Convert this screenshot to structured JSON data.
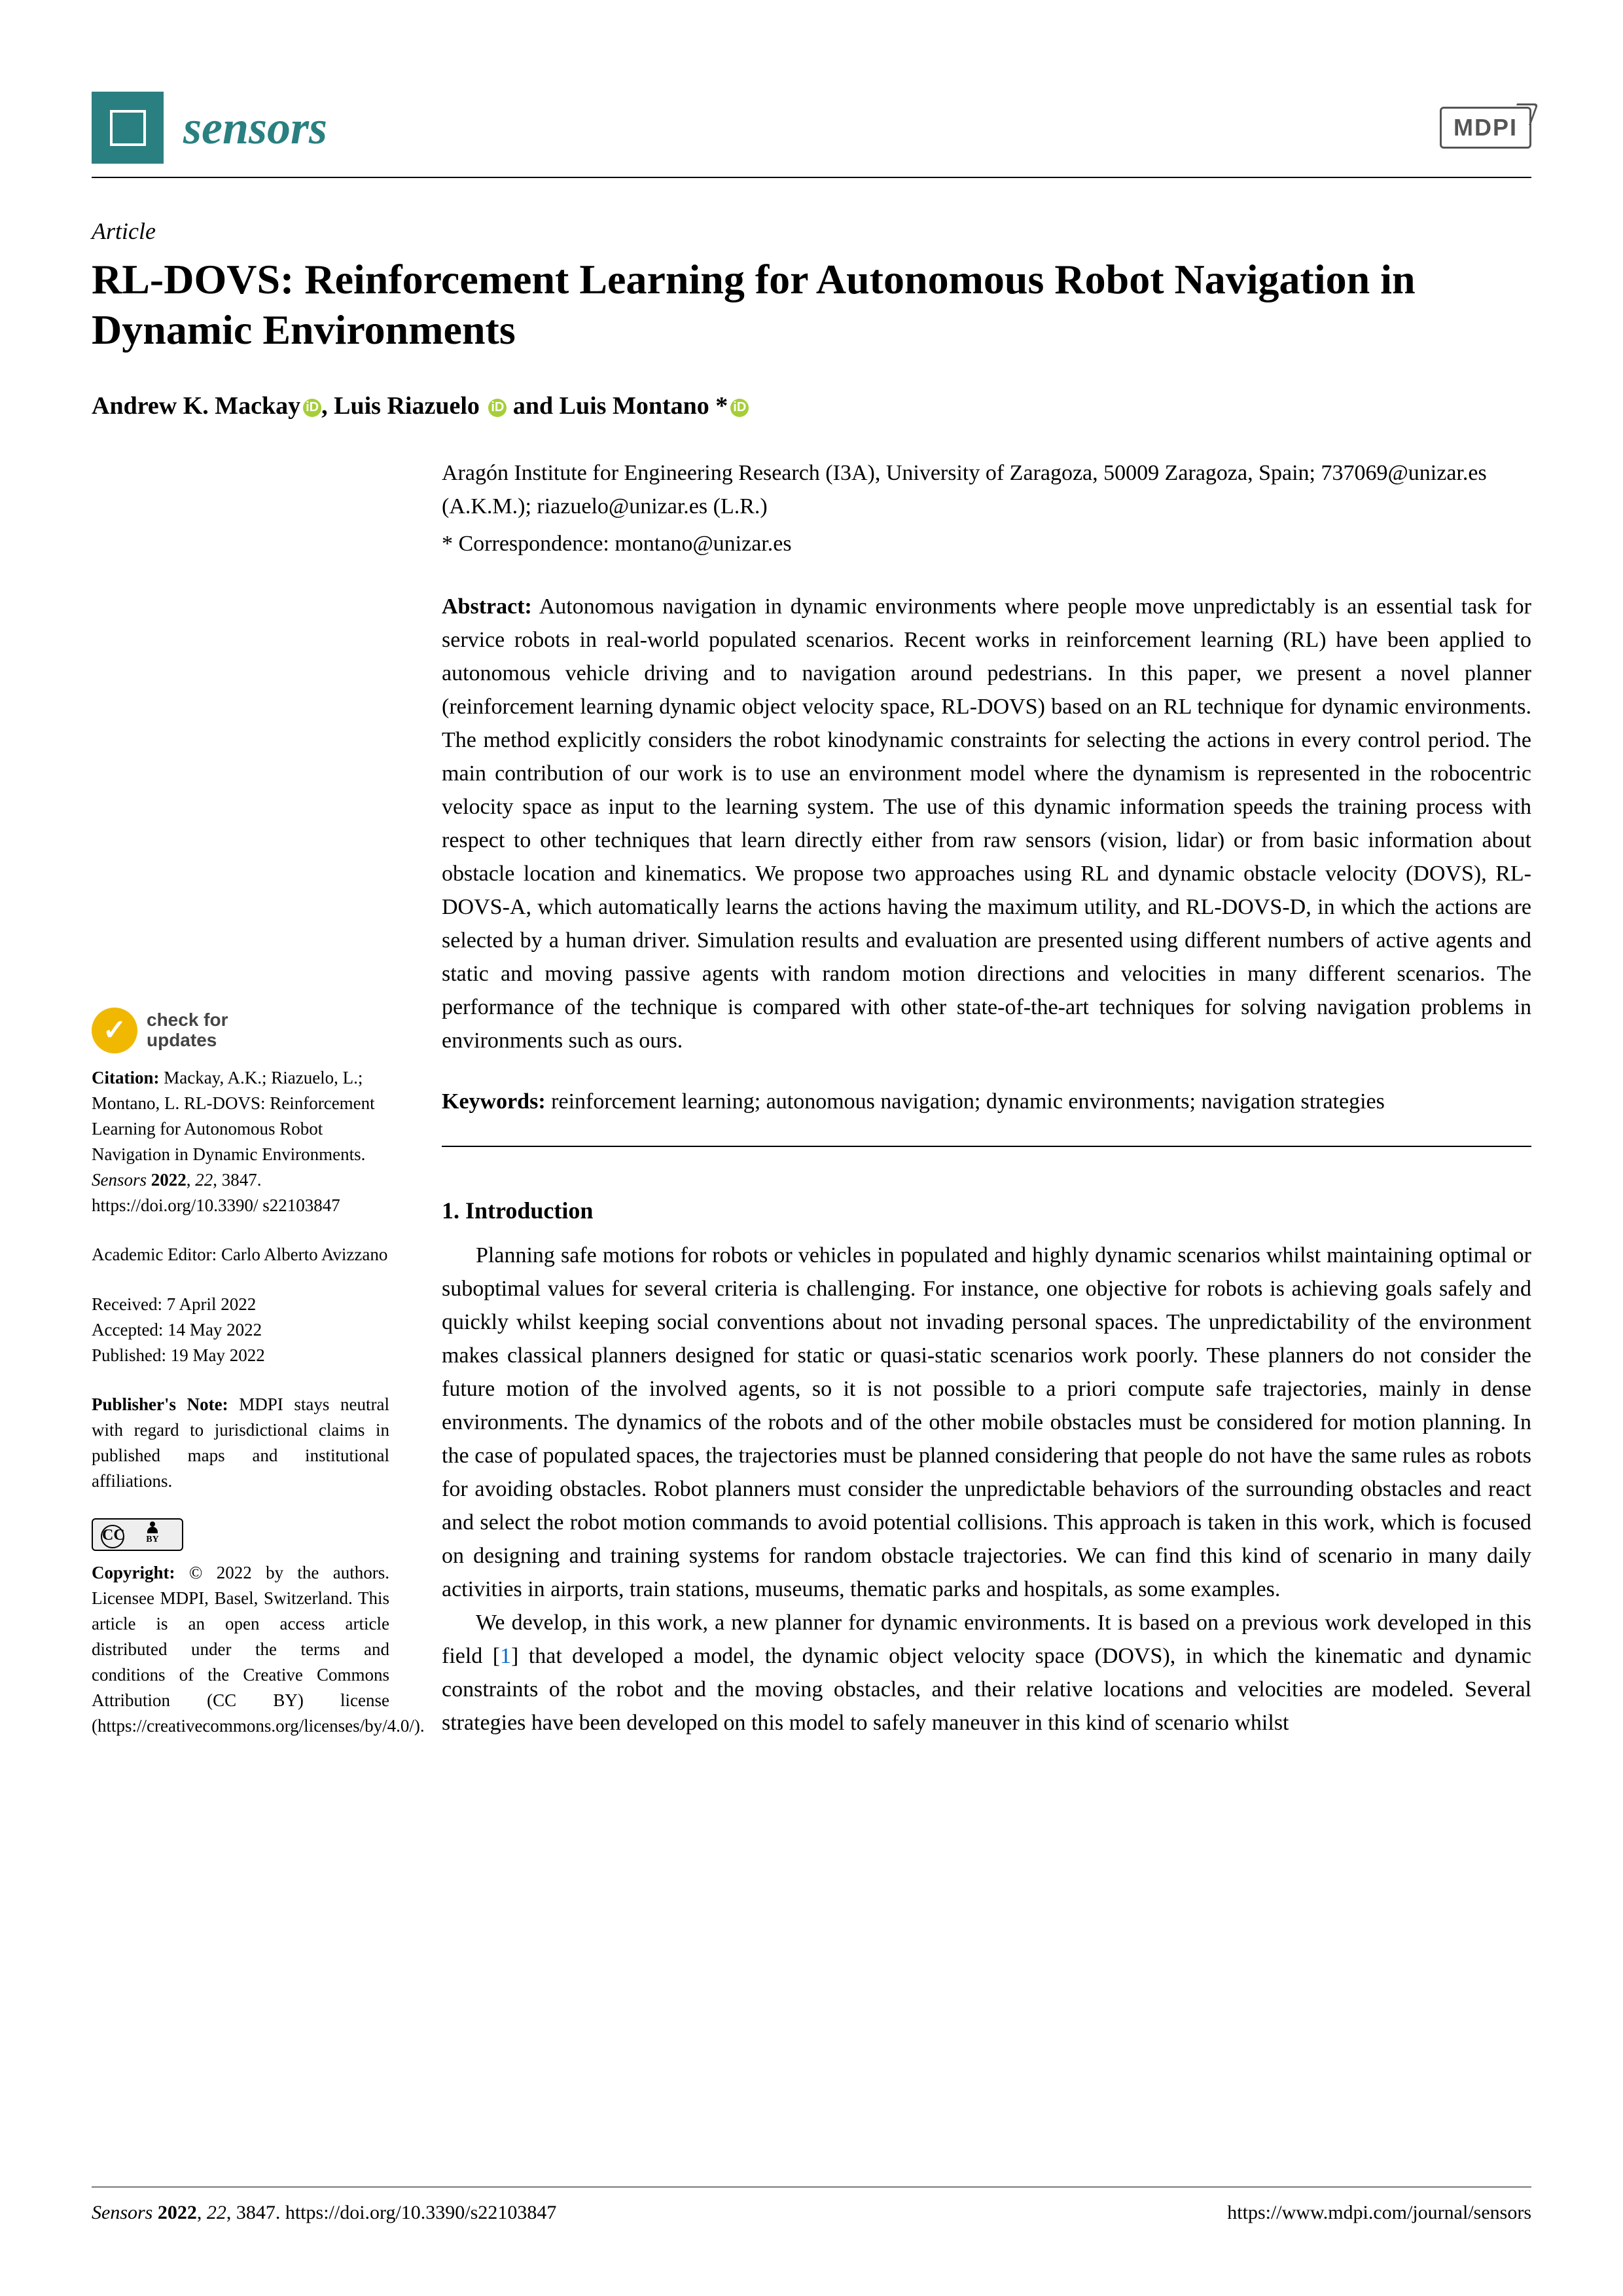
{
  "header": {
    "journal_name": "sensors",
    "publisher_logo": "MDPI"
  },
  "article": {
    "type": "Article",
    "title": "RL-DOVS: Reinforcement Learning for Autonomous Robot Navigation in Dynamic Environments",
    "authors_html": "Andrew K. Mackay ⓘ, Luis Riazuelo ⓘ and Luis Montano *ⓘ",
    "author1": "Andrew K. Mackay",
    "author2": ", Luis Riazuelo",
    "author3": " and Luis Montano *",
    "affiliation": "Aragón Institute for Engineering Research (I3A), University of Zaragoza, 50009 Zaragoza, Spain; 737069@unizar.es (A.K.M.); riazuelo@unizar.es (L.R.)",
    "correspondence": "* Correspondence: montano@unizar.es"
  },
  "abstract": {
    "label": "Abstract:",
    "text": " Autonomous navigation in dynamic environments where people move unpredictably is an essential task for service robots in real-world populated scenarios. Recent works in reinforcement learning (RL) have been applied to autonomous vehicle driving and to navigation around pedestrians. In this paper, we present a novel planner (reinforcement learning dynamic object velocity space, RL-DOVS) based on an RL technique for dynamic environments. The method explicitly considers the robot kinodynamic constraints for selecting the actions in every control period. The main contribution of our work is to use an environment model where the dynamism is represented in the robocentric velocity space as input to the learning system. The use of this dynamic information speeds the training process with respect to other techniques that learn directly either from raw sensors (vision, lidar) or from basic information about obstacle location and kinematics. We propose two approaches using RL and dynamic obstacle velocity (DOVS), RL-DOVS-A, which automatically learns the actions having the maximum utility, and RL-DOVS-D, in which the actions are selected by a human driver. Simulation results and evaluation are presented using different numbers of active agents and static and moving passive agents with random motion directions and velocities in many different scenarios. The performance of the technique is compared with other state-of-the-art techniques for solving navigation problems in environments such as ours."
  },
  "keywords": {
    "label": "Keywords:",
    "text": " reinforcement learning; autonomous navigation; dynamic environments; navigation strategies"
  },
  "sidebar": {
    "check_line1": "check for",
    "check_line2": "updates",
    "citation_label": "Citation:",
    "citation_text": " Mackay, A.K.; Riazuelo, L.; Montano, L. RL-DOVS: Reinforcement Learning for Autonomous Robot Navigation in Dynamic Environments. ",
    "citation_journal": "Sensors",
    "citation_tail": " 2022, 22, 3847. https://doi.org/10.3390/s22103847",
    "editor_label": "Academic Editor: ",
    "editor_name": "Carlo Alberto Avizzano",
    "received": "Received: 7 April 2022",
    "accepted": "Accepted: 14 May 2022",
    "published": "Published: 19 May 2022",
    "pubnote_label": "Publisher's Note:",
    "pubnote_text": " MDPI stays neutral with regard to jurisdictional claims in published maps and institutional affiliations.",
    "copyright_label": "Copyright:",
    "copyright_text": " © 2022 by the authors. Licensee MDPI, Basel, Switzerland. This article is an open access article distributed under the terms and conditions of the Creative Commons Attribution (CC BY) license (https://creativecommons.org/licenses/by/4.0/)."
  },
  "body": {
    "section1_heading": "1. Introduction",
    "para1": "Planning safe motions for robots or vehicles in populated and highly dynamic scenarios whilst maintaining optimal or suboptimal values for several criteria is challenging. For instance, one objective for robots is achieving goals safely and quickly whilst keeping social conventions about not invading personal spaces. The unpredictability of the environment makes classical planners designed for static or quasi-static scenarios work poorly. These planners do not consider the future motion of the involved agents, so it is not possible to a priori compute safe trajectories, mainly in dense environments. The dynamics of the robots and of the other mobile obstacles must be considered for motion planning. In the case of populated spaces, the trajectories must be planned considering that people do not have the same rules as robots for avoiding obstacles. Robot planners must consider the unpredictable behaviors of the surrounding obstacles and react and select the robot motion commands to avoid potential collisions. This approach is taken in this work, which is focused on designing and training systems for random obstacle trajectories. We can find this kind of scenario in many daily activities in airports, train stations, museums, thematic parks and hospitals, as some examples.",
    "para2a": "We develop, in this work, a new planner for dynamic environments. It is based on a previous work developed in this field [",
    "ref1": "1",
    "para2b": "] that developed a model, the dynamic object velocity space (DOVS), in which the kinematic and dynamic constraints of the robot and the moving obstacles, and their relative locations and velocities are modeled. Several strategies have been developed on this model to safely maneuver in this kind of scenario whilst"
  },
  "footer": {
    "left": "Sensors 2022, 22, 3847. https://doi.org/10.3390/s22103847",
    "left_journal": "Sensors",
    "left_rest": " 2022, 22, 3847. https://doi.org/10.3390/s22103847",
    "right": "https://www.mdpi.com/journal/sensors"
  },
  "colors": {
    "brand": "#2a8080",
    "orcid": "#a6ce39",
    "link": "#0066cc",
    "text": "#000000",
    "background": "#ffffff",
    "check_badge": "#f0b800"
  }
}
